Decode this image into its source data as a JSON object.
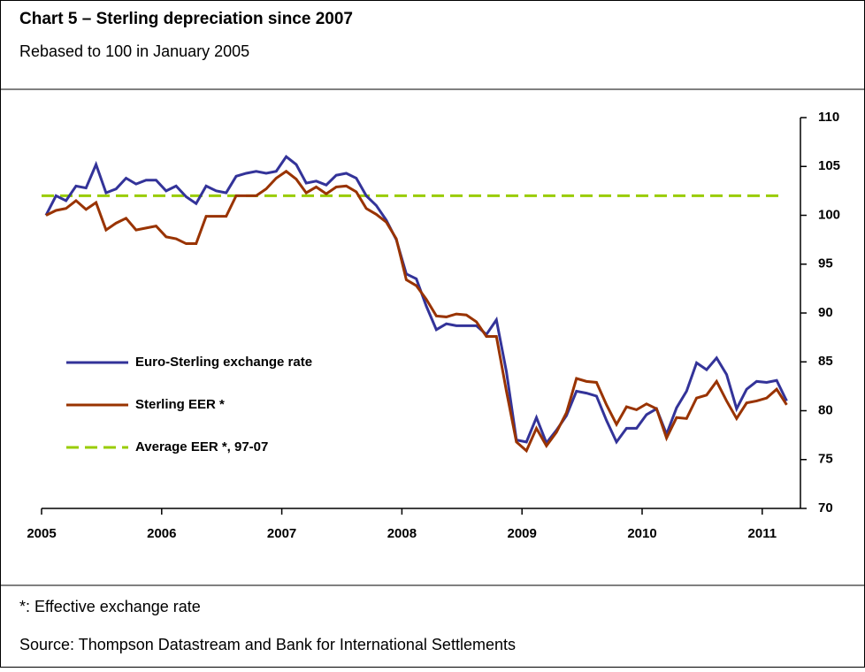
{
  "chart_data": {
    "type": "line",
    "title": "Chart 5 – Sterling depreciation since 2007",
    "subtitle": "Rebased to 100 in January 2005",
    "footnote": "*: Effective exchange rate",
    "source": "Source: Thompson Datastream and Bank for International Settlements",
    "categories": [
      "2005",
      null,
      null,
      null,
      null,
      null,
      null,
      null,
      null,
      null,
      null,
      null,
      "2006",
      null,
      null,
      null,
      null,
      null,
      null,
      null,
      null,
      null,
      null,
      null,
      "2007",
      null,
      null,
      null,
      null,
      null,
      null,
      null,
      null,
      null,
      null,
      null,
      "2008",
      null,
      null,
      null,
      null,
      null,
      null,
      null,
      null,
      null,
      null,
      null,
      "2009",
      null,
      null,
      null,
      null,
      null,
      null,
      null,
      null,
      null,
      null,
      null,
      "2010",
      null,
      null,
      null,
      null,
      null,
      null,
      null,
      null,
      null,
      null,
      null,
      "2011",
      null,
      null
    ],
    "series": [
      {
        "name": "Euro-Sterling exchange rate",
        "color": "#333399",
        "dashed": false,
        "values": [
          100,
          102,
          101.5,
          103,
          102.8,
          105.2,
          102.3,
          102.7,
          103.8,
          103.2,
          103.6,
          103.6,
          102.5,
          103,
          101.9,
          101.2,
          103,
          102.5,
          102.3,
          104,
          104.3,
          104.5,
          104.3,
          104.5,
          106,
          105.2,
          103.3,
          103.5,
          103.1,
          104.1,
          104.3,
          103.8,
          102,
          101,
          99.5,
          97.5,
          94,
          93.5,
          90.7,
          88.3,
          88.9,
          88.7,
          88.7,
          88.7,
          87.8,
          89.3,
          84,
          77,
          76.8,
          79.3,
          76.7,
          78,
          79.5,
          82,
          81.8,
          81.5,
          79,
          76.8,
          78.2,
          78.2,
          79.6,
          80.2,
          77.6,
          80.3,
          82,
          84.9,
          84.2,
          85.4,
          83.7,
          80.2,
          82.2,
          83,
          82.9,
          83.1,
          81
        ]
      },
      {
        "name": "Sterling EER *",
        "color": "#993300",
        "dashed": false,
        "values": [
          100,
          100.5,
          100.7,
          101.5,
          100.6,
          101.3,
          98.5,
          99.2,
          99.7,
          98.5,
          98.7,
          98.9,
          97.8,
          97.6,
          97.1,
          97.1,
          99.9,
          99.9,
          99.9,
          102,
          102,
          102,
          102.7,
          103.8,
          104.5,
          103.7,
          102.3,
          102.9,
          102.2,
          102.9,
          103,
          102.4,
          100.7,
          100.1,
          99.3,
          97.6,
          93.4,
          92.8,
          91.4,
          89.7,
          89.6,
          89.9,
          89.8,
          89.1,
          87.6,
          87.6,
          82,
          76.8,
          75.9,
          78.2,
          76.4,
          77.8,
          79.8,
          83.3,
          83,
          82.9,
          80.6,
          78.6,
          80.4,
          80.1,
          80.7,
          80.2,
          77.2,
          79.3,
          79.2,
          81.3,
          81.6,
          83,
          81,
          79.2,
          80.8,
          81,
          81.3,
          82.2,
          80.6
        ]
      },
      {
        "name": "Average EER *, 97-07",
        "color": "#99cc00",
        "dashed": true,
        "values": [
          102,
          102,
          102,
          102,
          102,
          102,
          102,
          102,
          102,
          102,
          102,
          102,
          102,
          102,
          102,
          102,
          102,
          102,
          102,
          102,
          102,
          102,
          102,
          102,
          102,
          102,
          102,
          102,
          102,
          102,
          102,
          102,
          102,
          102,
          102,
          102,
          102,
          102,
          102,
          102,
          102,
          102,
          102,
          102,
          102,
          102,
          102,
          102,
          102,
          102,
          102,
          102,
          102,
          102,
          102,
          102,
          102,
          102,
          102,
          102,
          102,
          102,
          102,
          102,
          102,
          102,
          102,
          102,
          102,
          102,
          102,
          102,
          102,
          102,
          102
        ]
      }
    ],
    "ylim": [
      70,
      110
    ],
    "yticks": [
      70,
      75,
      80,
      85,
      90,
      95,
      100,
      105,
      110
    ],
    "y_axis_side": "right",
    "grid": false
  }
}
